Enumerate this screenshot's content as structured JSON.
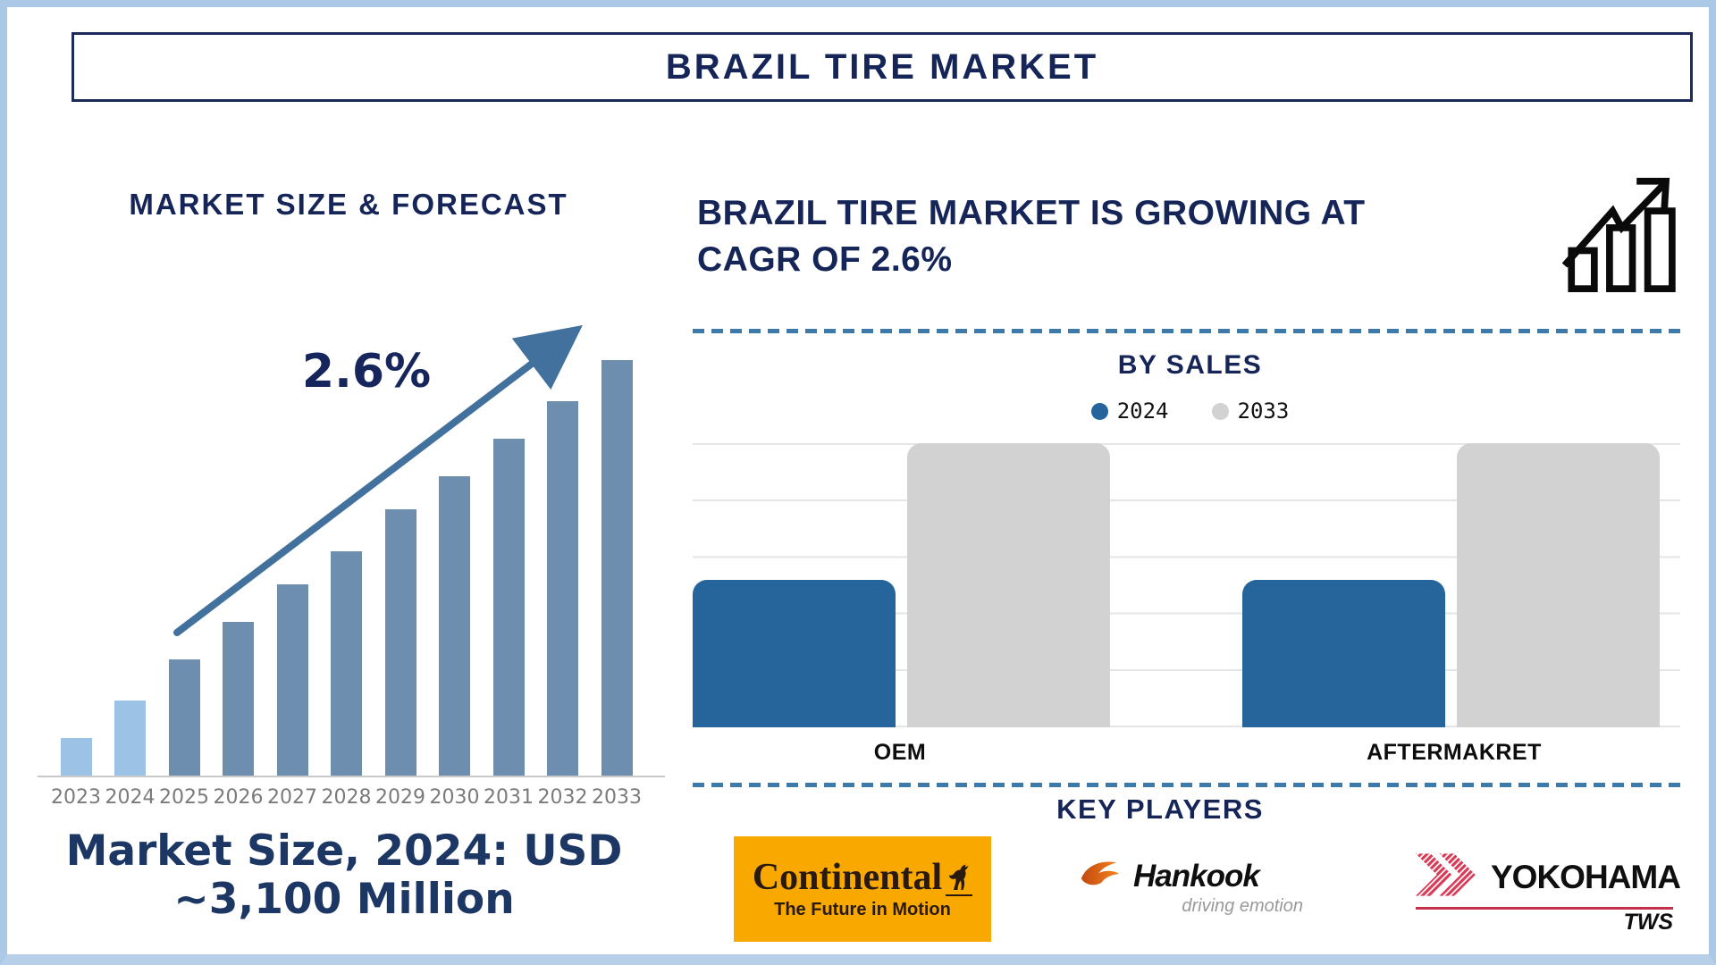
{
  "page": {
    "title": "BRAZIL TIRE MARKET"
  },
  "left_panel": {
    "heading": "MARKET SIZE & FORECAST",
    "cagr_label": "2.6%",
    "footnote_line1": "Market Size, 2024: USD",
    "footnote_line2": "~3,100 Million"
  },
  "right_panel": {
    "headline_line1": "BRAZIL TIRE MARKET IS GROWING AT",
    "headline_line2": "CAGR OF 2.6%",
    "key_players": {
      "title": "KEY PLAYERS",
      "logos": {
        "continental": {
          "name": "Continental",
          "tagline": "The Future in Motion",
          "bg_color": "#f9a800"
        },
        "hankook": {
          "name": "Hankook",
          "tagline": "driving emotion",
          "accent_color": "#ee6f1e"
        },
        "yokohama": {
          "name": "YOKOHAMA",
          "sub": "TWS",
          "accent_color": "#d63a56"
        }
      }
    }
  },
  "colors": {
    "navy_text": "#152558",
    "frame_border": "#abc8e6",
    "divider_dash": "#3d79a9",
    "axis_label_gray": "#7b7b7b"
  },
  "chart_data": [
    {
      "type": "bar",
      "title": "MARKET SIZE & FORECAST",
      "categories": [
        "2023",
        "2024",
        "2025",
        "2026",
        "2027",
        "2028",
        "2029",
        "2030",
        "2031",
        "2032",
        "2033"
      ],
      "relative_heights_pct": [
        9,
        18,
        28,
        37,
        46,
        54,
        64,
        72,
        81,
        90,
        100
      ],
      "ylabel": "",
      "y_axis_shown": false,
      "note": "Bar heights are illustrative (no value axis shown); growth arrow annotated 2.6% CAGR; Market Size 2024 = USD ~3,100 Million",
      "bar_color": "#6d8eae",
      "highlight_color": "#9cc3e6",
      "highlight_first_n": 2,
      "arrow_color": "#41719c",
      "annotation": "2.6%"
    },
    {
      "type": "bar",
      "title": "BY SALES",
      "categories": [
        "OEM",
        "AFTERMAKRET"
      ],
      "series": [
        {
          "name": "2024",
          "values": [
            52,
            52
          ],
          "color": "#26659c"
        },
        {
          "name": "2033",
          "values": [
            100,
            100
          ],
          "color": "#d2d2d2"
        }
      ],
      "ylabel": "",
      "y_axis_shown": false,
      "grid": true,
      "legend_position": "top-center",
      "note": "Values are relative bar heights in % of plot height; no numeric axis shown"
    }
  ]
}
